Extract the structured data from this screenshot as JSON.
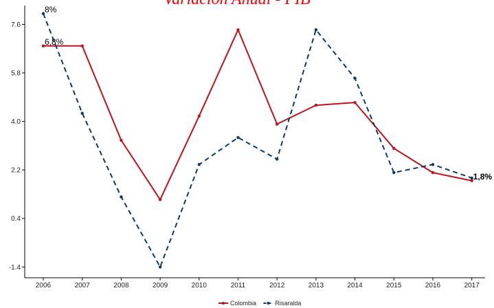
{
  "chart_data": {
    "type": "line",
    "title": "Variación Anual - PIB",
    "xlabel": "",
    "ylabel": "",
    "categories": [
      "2006",
      "2007",
      "2008",
      "2009",
      "2010",
      "2011",
      "2012",
      "2013",
      "2014",
      "2015",
      "2016",
      "2017"
    ],
    "y_ticks": [
      "7.6",
      "5.8",
      "4.0",
      "2.2",
      "0.4",
      "-1.4"
    ],
    "ylim": [
      -1.8,
      8.3
    ],
    "grid": false,
    "legend_position": "bottom",
    "series": [
      {
        "name": "Colombia",
        "color": "#c0101a",
        "dash": "solid",
        "values": [
          6.8,
          6.8,
          3.3,
          1.1,
          4.2,
          7.4,
          3.9,
          4.6,
          4.7,
          3.0,
          2.1,
          1.8
        ]
      },
      {
        "name": "Risaralda",
        "color": "#0d3a5c",
        "dash": "dashed",
        "values": [
          8.0,
          4.3,
          1.2,
          -1.4,
          2.4,
          3.4,
          2.6,
          7.4,
          5.6,
          2.1,
          2.4,
          1.9
        ]
      }
    ],
    "annotations": [
      {
        "text": "8%",
        "series": 1,
        "index": 0,
        "bold": false
      },
      {
        "text": "6,8%",
        "series": 0,
        "index": 0,
        "bold": false
      },
      {
        "text": "1,8%",
        "series": 0,
        "index": 11,
        "bold": true
      }
    ]
  }
}
